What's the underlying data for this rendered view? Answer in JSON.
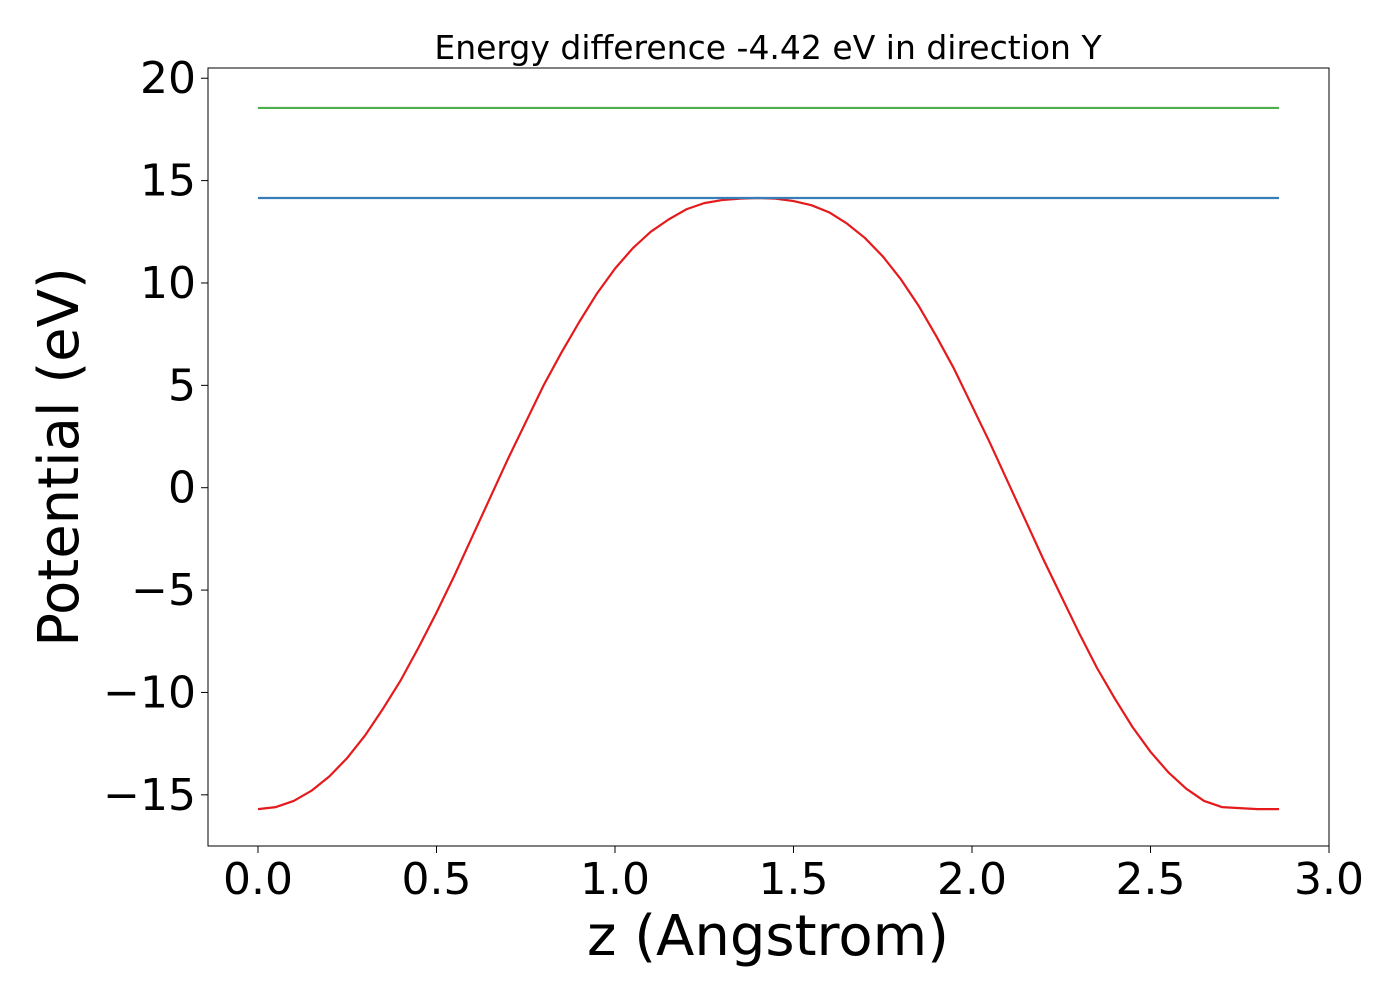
{
  "chart_data": {
    "type": "line",
    "title": "Energy difference -4.42 eV in direction Y",
    "xlabel": "z (Angstrom)",
    "ylabel": "Potential (eV)",
    "xlim": [
      -0.14,
      3.0
    ],
    "ylim": [
      -17.5,
      20.5
    ],
    "xticks": [
      0.0,
      0.5,
      1.0,
      1.5,
      2.0,
      2.5,
      3.0
    ],
    "xtick_labels": [
      "0.0",
      "0.5",
      "1.0",
      "1.5",
      "2.0",
      "2.5",
      "3.0"
    ],
    "yticks": [
      -15,
      -10,
      -5,
      0,
      5,
      10,
      15,
      20
    ],
    "ytick_labels": [
      "−15",
      "−10",
      "−5",
      "0",
      "5",
      "10",
      "15",
      "20"
    ],
    "grid": false,
    "series": [
      {
        "name": "potential",
        "color": "#e41a1c",
        "x": [
          0.0,
          0.05,
          0.1,
          0.15,
          0.2,
          0.25,
          0.3,
          0.35,
          0.4,
          0.45,
          0.5,
          0.55,
          0.6,
          0.65,
          0.7,
          0.75,
          0.8,
          0.85,
          0.9,
          0.95,
          1.0,
          1.05,
          1.1,
          1.15,
          1.2,
          1.25,
          1.3,
          1.35,
          1.4,
          1.45,
          1.5,
          1.55,
          1.6,
          1.65,
          1.7,
          1.75,
          1.8,
          1.85,
          1.9,
          1.95,
          2.0,
          2.05,
          2.1,
          2.15,
          2.2,
          2.25,
          2.3,
          2.35,
          2.4,
          2.45,
          2.5,
          2.55,
          2.6,
          2.65,
          2.7,
          2.75,
          2.8,
          2.86
        ],
        "y": [
          -15.7,
          -15.6,
          -15.3,
          -14.8,
          -14.1,
          -13.2,
          -12.1,
          -10.8,
          -9.4,
          -7.8,
          -6.1,
          -4.3,
          -2.4,
          -0.5,
          1.4,
          3.2,
          5.0,
          6.6,
          8.1,
          9.5,
          10.7,
          11.7,
          12.5,
          13.1,
          13.6,
          13.9,
          14.05,
          14.12,
          14.15,
          14.12,
          14.0,
          13.8,
          13.45,
          12.9,
          12.2,
          11.3,
          10.2,
          8.9,
          7.4,
          5.8,
          4.0,
          2.2,
          0.3,
          -1.6,
          -3.5,
          -5.3,
          -7.1,
          -8.8,
          -10.3,
          -11.7,
          -12.9,
          -13.9,
          -14.7,
          -15.3,
          -15.6,
          -15.65,
          -15.7,
          -15.7
        ]
      },
      {
        "name": "barrier-level",
        "color": "#377eb8",
        "x": [
          0.0,
          2.86
        ],
        "y": [
          14.15,
          14.15
        ]
      },
      {
        "name": "reference-level",
        "color": "#4daf4a",
        "x": [
          0.0,
          2.86
        ],
        "y": [
          18.55,
          18.55
        ]
      }
    ]
  }
}
